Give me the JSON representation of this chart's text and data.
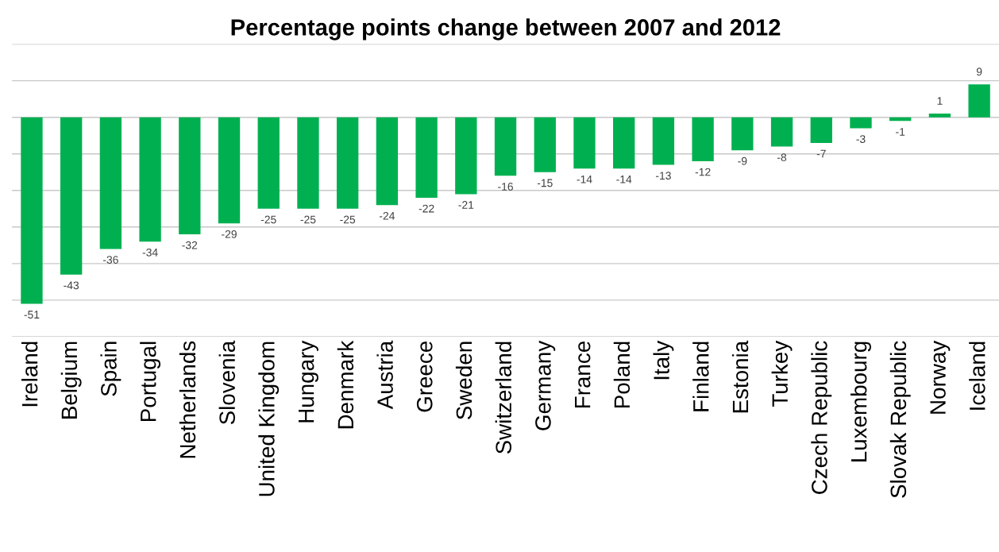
{
  "chart_data": {
    "type": "bar",
    "title": "Percentage points change between 2007 and 2012",
    "categories": [
      "Ireland",
      "Belgium",
      "Spain",
      "Portugal",
      "Netherlands",
      "Slovenia",
      "United Kingdom",
      "Hungary",
      "Denmark",
      "Austria",
      "Greece",
      "Sweden",
      "Switzerland",
      "Germany",
      "France",
      "Poland",
      "Italy",
      "Finland",
      "Estonia",
      "Turkey",
      "Czech Republic",
      "Luxembourg",
      "Slovak Republic",
      "Norway",
      "Iceland"
    ],
    "values": [
      -51,
      -43,
      -36,
      -34,
      -32,
      -29,
      -25,
      -25,
      -25,
      -24,
      -22,
      -21,
      -16,
      -15,
      -14,
      -14,
      -13,
      -12,
      -9,
      -8,
      -7,
      -3,
      -1,
      1,
      9
    ],
    "color": "#00b050",
    "data_labels": true,
    "grid": "y",
    "ylim": [
      -60,
      20
    ],
    "yticks": [
      {
        "value": -60,
        "label": null
      },
      {
        "value": -50,
        "label": null
      },
      {
        "value": -40,
        "label": null
      },
      {
        "value": -30,
        "label": null
      },
      {
        "value": -20,
        "label": null
      },
      {
        "value": -10,
        "label": null
      },
      {
        "value": 0,
        "label": null
      },
      {
        "value": 10,
        "label": null
      },
      {
        "value": 20,
        "label": null
      }
    ],
    "tick_labels": "x"
  }
}
